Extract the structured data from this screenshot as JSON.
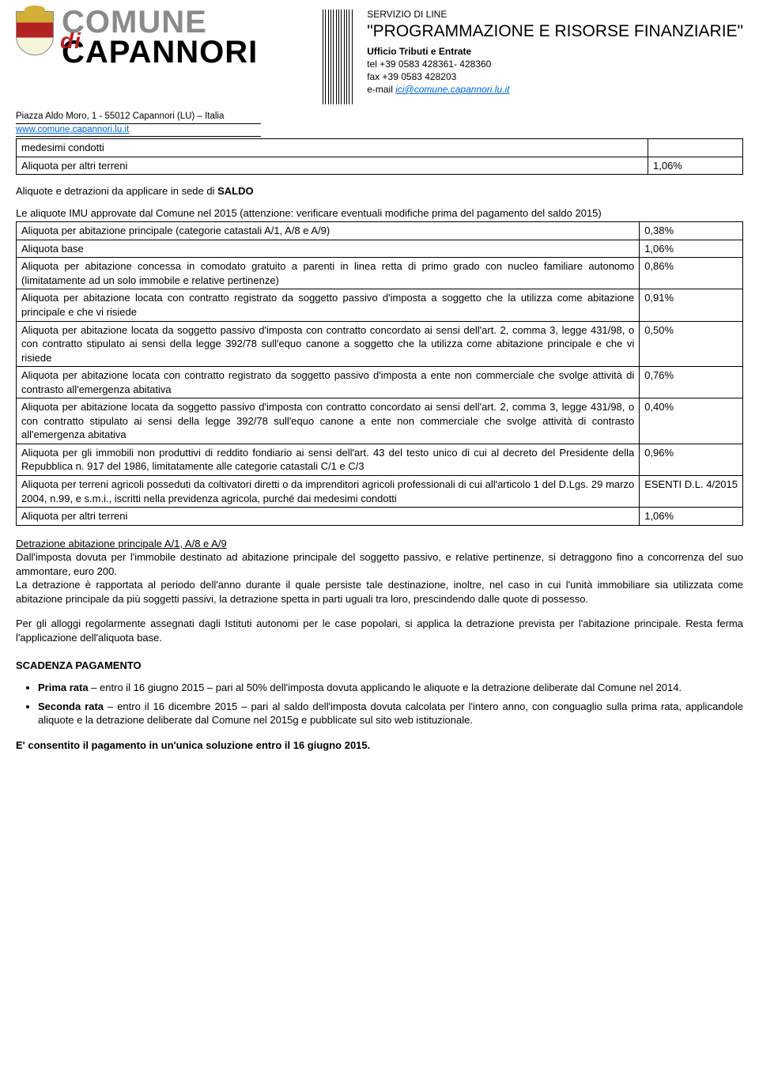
{
  "header": {
    "comune": "COMUNE",
    "di": "di",
    "capannori": "CAPANNORI",
    "svc_line1": "SERVIZIO DI LINE",
    "svc_title": "\"PROGRAMMAZIONE E RISORSE FINANZIARIE\"",
    "svc_office": "Ufficio Tributi e Entrate",
    "tel": "tel  +39 0583 428361- 428360",
    "fax": "fax  +39 0583 428203",
    "email_label": "e-mail ",
    "email": "ici@comune.capannori.lu.it",
    "addr1": "Piazza Aldo Moro, 1 - 55012 Capannori (LU) – Italia",
    "addr2": "www.comune.capannori.lu.it"
  },
  "table1": {
    "r0c0": "medesimi condotti",
    "r1c0": "Aliquota per altri terreni",
    "r1c1": "1,06%"
  },
  "intro_title": "Aliquote e detrazioni da applicare in sede di SALDO",
  "intro_title_prefix": "Aliquote e detrazioni da applicare in sede di ",
  "intro_title_bold": "SALDO",
  "intro_text": "Le aliquote IMU approvate dal Comune nel 2015 (attenzione: verificare eventuali modifiche prima del pagamento del saldo 2015)",
  "table2": {
    "r0c0": "Aliquota per abitazione principale (categorie catastali A/1, A/8 e A/9)",
    "r0c1": "0,38%",
    "r1c0": "Aliquota base",
    "r1c1": "1,06%",
    "r2c0": "Aliquota per abitazione concessa in comodato gratuito a parenti in linea retta di primo grado con nucleo familiare autonomo (limitatamente ad un solo immobile e relative pertinenze)",
    "r2c1": "0,86%",
    "r3c0": "Aliquota per abitazione locata con contratto registrato da soggetto passivo d'imposta a soggetto che la utilizza come abitazione principale e che vi risiede",
    "r3c1": "0,91%",
    "r4c0": "Aliquota per abitazione locata da soggetto passivo d'imposta con contratto concordato ai sensi dell'art. 2, comma 3, legge 431/98, o con contratto stipulato ai sensi della legge 392/78 sull'equo canone a soggetto che la utilizza come abitazione principale e che vi risiede",
    "r4c1": "0,50%",
    "r5c0": "Aliquota per abitazione locata con contratto registrato da soggetto passivo d'imposta a ente non commerciale che svolge attività di contrasto all'emergenza abitativa",
    "r5c1": "0,76%",
    "r6c0": "Aliquota per abitazione locata da soggetto passivo d'imposta con contratto concordato ai sensi dell'art. 2, comma 3, legge 431/98, o con contratto stipulato ai sensi della legge 392/78 sull'equo canone a ente non commerciale che svolge attività di contrasto all'emergenza abitativa",
    "r6c1": "0,40%",
    "r7c0": "Aliquota per gli immobili non produttivi di reddito fondiario ai sensi dell'art. 43 del testo unico di cui al decreto del Presidente della Repubblica n. 917 del 1986, limitatamente alle categorie catastali C/1 e C/3",
    "r7c1": "0,96%",
    "r8c0": "Aliquota per terreni agricoli posseduti da coltivatori diretti o da imprenditori agricoli professionali di cui all'articolo 1 del D.Lgs. 29 marzo 2004, n.99, e s.m.i., iscritti nella previdenza agricola, purché dai medesimi condotti",
    "r8c1": "ESENTI D.L. 4/2015",
    "r9c0": "Aliquota per altri terreni",
    "r9c1": "1,06%"
  },
  "detr_head": "Detrazione abitazione principale A/1, A/8 e A/9",
  "detr_p1": "Dall'imposta dovuta per l'immobile destinato ad abitazione principale del soggetto passivo, e relative pertinenze, si detraggono fino a concorrenza del suo ammontare, euro 200.",
  "detr_p2": "La detrazione è rapportata al periodo dell'anno durante il quale persiste tale destinazione, inoltre, nel caso in cui l'unità immobiliare sia utilizzata come abitazione principale da più soggetti passivi, la detrazione spetta in parti uguali tra loro, prescindendo dalle quote di possesso.",
  "alloggi_p": "Per gli alloggi regolarmente assegnati dagli Istituti autonomi per le case popolari, si applica la detrazione prevista per l'abitazione principale. Resta ferma l'applicazione dell'aliquota base.",
  "scad_head": "SCADENZA PAGAMENTO",
  "bullet1_bold": "Prima rata",
  "bullet1_rest": " – entro il 16 giugno 2015 – pari al 50% dell'imposta dovuta applicando le aliquote e la detrazione deliberate dal Comune nel 2014.",
  "bullet2_bold": "Seconda rata",
  "bullet2_rest": " – entro il 16 dicembre 2015 – pari al saldo dell'imposta dovuta calcolata per l'intero anno, con conguaglio sulla prima rata, applicandole aliquote e la detrazione deliberate dal Comune nel 2015g e pubblicate sul sito web istituzionale.",
  "final": "E' consentito il pagamento in un'unica soluzione entro il 16 giugno 2015."
}
